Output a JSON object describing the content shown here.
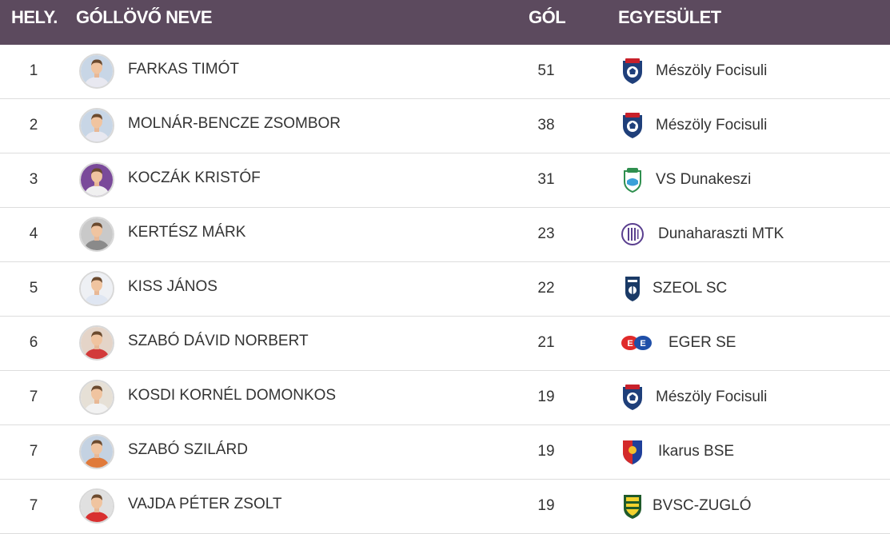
{
  "header": {
    "rank": "HELY.",
    "name": "GÓLLÖVŐ NEVE",
    "goals": "GÓL",
    "club": "EGYESÜLET"
  },
  "rows": [
    {
      "rank": "1",
      "name": "FARKAS TIMÓT",
      "goals": "51",
      "club": "Mészöly Focisuli",
      "crest": "meszoly-crest-icon",
      "avatar_bg": "#c8d6e6",
      "shirt": "#e8e8f0"
    },
    {
      "rank": "2",
      "name": "MOLNÁR-BENCZE ZSOMBOR",
      "goals": "38",
      "club": "Mészöly Focisuli",
      "crest": "meszoly-crest-icon",
      "avatar_bg": "#c8d6e6",
      "shirt": "#e8e8f0"
    },
    {
      "rank": "3",
      "name": "KOCZÁK KRISTÓF",
      "goals": "31",
      "club": "VS Dunakeszi",
      "crest": "dunakeszi-crest-icon",
      "avatar_bg": "#7a4a9a",
      "shirt": "#f0f0f0"
    },
    {
      "rank": "4",
      "name": "KERTÉSZ MÁRK",
      "goals": "23",
      "club": "Dunaharaszti MTK",
      "crest": "dunaharaszti-crest-icon",
      "avatar_bg": "#c9c9c9",
      "shirt": "#8a8a8a"
    },
    {
      "rank": "5",
      "name": "KISS JÁNOS",
      "goals": "22",
      "club": "SZEOL SC",
      "crest": "szeol-crest-icon",
      "avatar_bg": "#eef0f4",
      "shirt": "#dfe6f2"
    },
    {
      "rank": "6",
      "name": "SZABÓ DÁVID NORBERT",
      "goals": "21",
      "club": "EGER SE",
      "crest": "eger-crest-icon",
      "avatar_bg": "#e4d4c8",
      "shirt": "#d23a3a"
    },
    {
      "rank": "7",
      "name": "KOSDI KORNÉL DOMONKOS",
      "goals": "19",
      "club": "Mészöly Focisuli",
      "crest": "meszoly-crest-icon",
      "avatar_bg": "#e6e0d6",
      "shirt": "#f2f2f2"
    },
    {
      "rank": "7",
      "name": "SZABÓ SZILÁRD",
      "goals": "19",
      "club": "Ikarus BSE",
      "crest": "ikarus-crest-icon",
      "avatar_bg": "#c4d2e2",
      "shirt": "#e07a3a"
    },
    {
      "rank": "7",
      "name": "VAJDA PÉTER ZSOLT",
      "goals": "19",
      "club": "BVSC-ZUGLÓ",
      "crest": "bvsc-crest-icon",
      "avatar_bg": "#e0e0e0",
      "shirt": "#d83030"
    }
  ],
  "colors": {
    "header_bg": "#5c4a5e",
    "header_text": "#ffffff",
    "row_text": "#333333",
    "divider": "#dddddd"
  }
}
